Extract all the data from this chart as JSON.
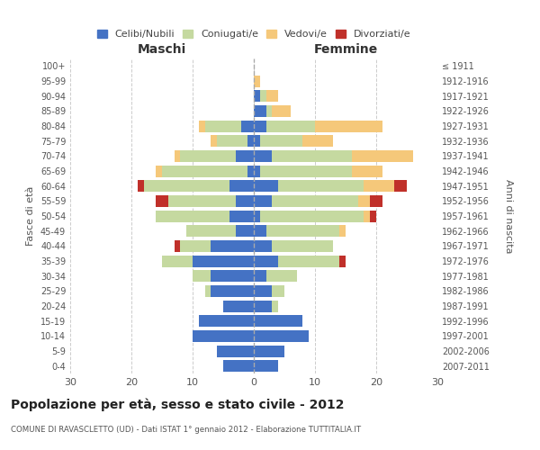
{
  "age_groups": [
    "0-4",
    "5-9",
    "10-14",
    "15-19",
    "20-24",
    "25-29",
    "30-34",
    "35-39",
    "40-44",
    "45-49",
    "50-54",
    "55-59",
    "60-64",
    "65-69",
    "70-74",
    "75-79",
    "80-84",
    "85-89",
    "90-94",
    "95-99",
    "100+"
  ],
  "birth_years": [
    "2007-2011",
    "2002-2006",
    "1997-2001",
    "1992-1996",
    "1987-1991",
    "1982-1986",
    "1977-1981",
    "1972-1976",
    "1967-1971",
    "1962-1966",
    "1957-1961",
    "1952-1956",
    "1947-1951",
    "1942-1946",
    "1937-1941",
    "1932-1936",
    "1927-1931",
    "1922-1926",
    "1917-1921",
    "1912-1916",
    "≤ 1911"
  ],
  "maschi_celibi": [
    5,
    6,
    10,
    9,
    5,
    7,
    7,
    10,
    7,
    3,
    4,
    3,
    4,
    1,
    3,
    1,
    2,
    0,
    0,
    0,
    0
  ],
  "maschi_coniugati": [
    0,
    0,
    0,
    0,
    0,
    1,
    3,
    5,
    5,
    8,
    12,
    11,
    14,
    14,
    9,
    5,
    6,
    0,
    0,
    0,
    0
  ],
  "maschi_vedovi": [
    0,
    0,
    0,
    0,
    0,
    0,
    0,
    0,
    0,
    0,
    0,
    0,
    0,
    1,
    1,
    1,
    1,
    0,
    0,
    0,
    0
  ],
  "maschi_divorziati": [
    0,
    0,
    0,
    0,
    0,
    0,
    0,
    0,
    1,
    0,
    0,
    2,
    1,
    0,
    0,
    0,
    0,
    0,
    0,
    0,
    0
  ],
  "femmine_celibi": [
    4,
    5,
    9,
    8,
    3,
    3,
    2,
    4,
    3,
    2,
    1,
    3,
    4,
    1,
    3,
    1,
    2,
    2,
    1,
    0,
    0
  ],
  "femmine_coniugati": [
    0,
    0,
    0,
    0,
    1,
    2,
    5,
    10,
    10,
    12,
    17,
    14,
    14,
    15,
    13,
    7,
    8,
    1,
    1,
    0,
    0
  ],
  "femmine_vedovi": [
    0,
    0,
    0,
    0,
    0,
    0,
    0,
    0,
    0,
    1,
    1,
    2,
    5,
    5,
    10,
    5,
    11,
    3,
    2,
    1,
    0
  ],
  "femmine_divorziati": [
    0,
    0,
    0,
    0,
    0,
    0,
    0,
    1,
    0,
    0,
    1,
    2,
    2,
    0,
    0,
    0,
    0,
    0,
    0,
    0,
    0
  ],
  "color_celibi": "#4472c4",
  "color_coniugati": "#c5d9a0",
  "color_vedovi": "#f5c87a",
  "color_divorziati": "#c0302a",
  "title": "Popolazione per età, sesso e stato civile - 2012",
  "subtitle": "COMUNE DI RAVASCLETTO (UD) - Dati ISTAT 1° gennaio 2012 - Elaborazione TUTTITALIA.IT",
  "xlabel_left": "Maschi",
  "xlabel_right": "Femmine",
  "ylabel_left": "Fasce di età",
  "ylabel_right": "Anni di nascita",
  "xlim": 30,
  "background_color": "#ffffff",
  "legend_labels": [
    "Celibi/Nubili",
    "Coniugati/e",
    "Vedovi/e",
    "Divorziati/e"
  ]
}
